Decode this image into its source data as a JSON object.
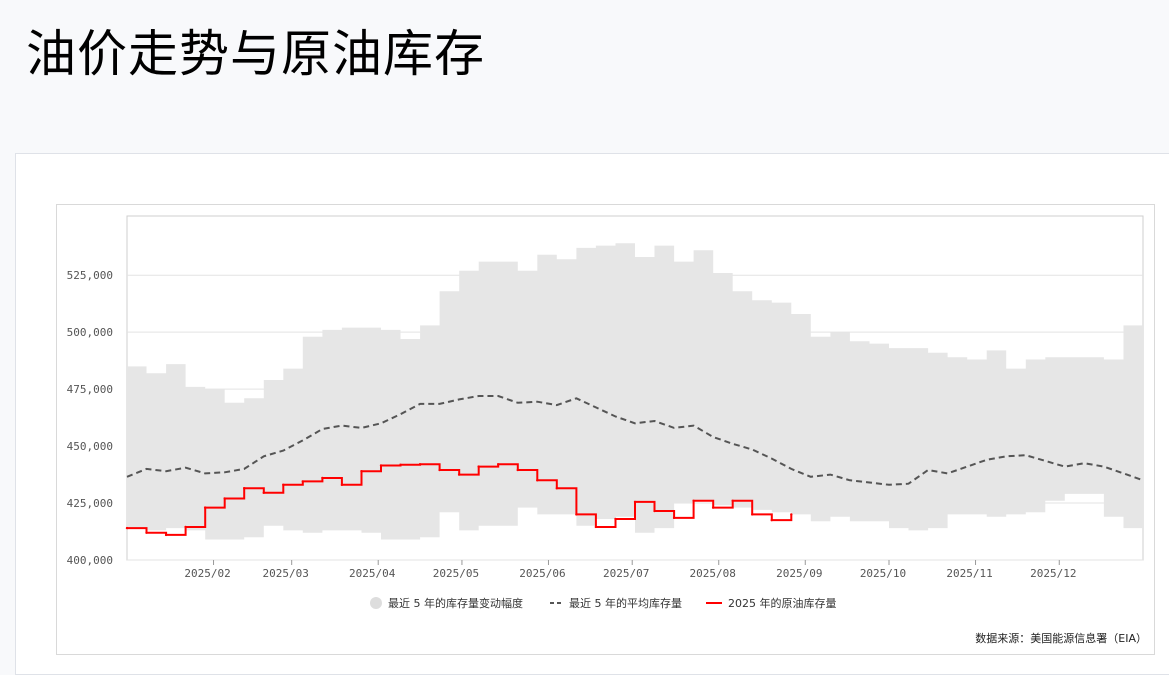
{
  "page": {
    "title": "油价走势与原油库存"
  },
  "chart_data": {
    "type": "area",
    "x_axis": {
      "months": [
        "2025/02",
        "2025/03",
        "2025/04",
        "2025/05",
        "2025/06",
        "2025/07",
        "2025/08",
        "2025/09",
        "2025/10",
        "2025/11",
        "2025/12"
      ],
      "range": [
        "2025-01-01",
        "2025-12-31"
      ]
    },
    "y_axis": {
      "ticks": [
        400000,
        425000,
        450000,
        475000,
        500000,
        525000
      ],
      "tick_labels": [
        "400,000",
        "425,000",
        "450,000",
        "475,000",
        "500,000",
        "525,000"
      ],
      "ylim": [
        400000,
        551000
      ]
    },
    "grid": "horizontal",
    "legend_position": "bottom-center",
    "series": [
      {
        "name": "最近 5 年的库存量变动幅度",
        "kind": "range-band",
        "color": "#e6e6e6",
        "x": [
          "2025-01-01",
          "2025-01-08",
          "2025-01-15",
          "2025-01-22",
          "2025-01-29",
          "2025-02-05",
          "2025-02-12",
          "2025-02-19",
          "2025-02-26",
          "2025-03-05",
          "2025-03-12",
          "2025-03-19",
          "2025-03-26",
          "2025-04-02",
          "2025-04-09",
          "2025-04-16",
          "2025-04-23",
          "2025-04-30",
          "2025-05-07",
          "2025-05-14",
          "2025-05-21",
          "2025-05-28",
          "2025-06-04",
          "2025-06-11",
          "2025-06-18",
          "2025-06-25",
          "2025-07-02",
          "2025-07-09",
          "2025-07-16",
          "2025-07-23",
          "2025-07-30",
          "2025-08-06",
          "2025-08-13",
          "2025-08-20",
          "2025-08-27",
          "2025-09-03",
          "2025-09-10",
          "2025-09-17",
          "2025-09-24",
          "2025-10-01",
          "2025-10-08",
          "2025-10-15",
          "2025-10-22",
          "2025-10-29",
          "2025-11-05",
          "2025-11-12",
          "2025-11-19",
          "2025-11-26",
          "2025-12-03",
          "2025-12-10",
          "2025-12-17",
          "2025-12-24",
          "2025-12-31"
        ],
        "high": [
          485000,
          482000,
          486000,
          476000,
          475000,
          469000,
          471000,
          479000,
          484000,
          498000,
          501000,
          502000,
          502000,
          501000,
          497000,
          503000,
          518000,
          527000,
          531000,
          531000,
          527000,
          534000,
          532000,
          537000,
          538000,
          539000,
          533000,
          538000,
          531000,
          536000,
          526000,
          518000,
          514000,
          513000,
          508000,
          498000,
          500000,
          496000,
          495000,
          493000,
          493000,
          491000,
          489000,
          488000,
          492000,
          484000,
          488000,
          489000,
          489000,
          489000,
          488000,
          503000,
          500000
        ],
        "low": [
          414000,
          413000,
          414000,
          413000,
          409000,
          409000,
          410000,
          415000,
          413000,
          412000,
          413000,
          413000,
          412000,
          409000,
          409000,
          410000,
          421000,
          413000,
          415000,
          415000,
          423000,
          420000,
          420000,
          415000,
          418000,
          419000,
          412000,
          414000,
          425000,
          426000,
          424000,
          423000,
          422000,
          421000,
          420000,
          417000,
          419000,
          417000,
          417000,
          414000,
          413000,
          414000,
          420000,
          420000,
          419000,
          420000,
          421000,
          426000,
          429000,
          429000,
          419000,
          414000,
          421000
        ]
      },
      {
        "name": "最近 5 年的平均库存量",
        "kind": "line",
        "style": "dashed",
        "color": "#555555",
        "x": [
          "2025-01-01",
          "2025-01-08",
          "2025-01-15",
          "2025-01-22",
          "2025-01-29",
          "2025-02-05",
          "2025-02-12",
          "2025-02-19",
          "2025-02-26",
          "2025-03-05",
          "2025-03-12",
          "2025-03-19",
          "2025-03-26",
          "2025-04-02",
          "2025-04-09",
          "2025-04-16",
          "2025-04-23",
          "2025-04-30",
          "2025-05-07",
          "2025-05-14",
          "2025-05-21",
          "2025-05-28",
          "2025-06-04",
          "2025-06-11",
          "2025-06-18",
          "2025-06-25",
          "2025-07-02",
          "2025-07-09",
          "2025-07-16",
          "2025-07-23",
          "2025-07-30",
          "2025-08-06",
          "2025-08-13",
          "2025-08-20",
          "2025-08-27",
          "2025-09-03",
          "2025-09-10",
          "2025-09-17",
          "2025-09-24",
          "2025-10-01",
          "2025-10-08",
          "2025-10-15",
          "2025-10-22",
          "2025-10-29",
          "2025-11-05",
          "2025-11-12",
          "2025-11-19",
          "2025-11-26",
          "2025-12-03",
          "2025-12-10",
          "2025-12-17",
          "2025-12-24",
          "2025-12-31"
        ],
        "values": [
          436500,
          440000,
          439000,
          440500,
          438000,
          438500,
          440000,
          445500,
          448000,
          452500,
          457500,
          459000,
          458000,
          460000,
          464000,
          468500,
          468500,
          470500,
          472000,
          472000,
          469000,
          469500,
          468000,
          471000,
          467000,
          463000,
          460000,
          461000,
          458000,
          459000,
          454000,
          451000,
          448500,
          444500,
          440000,
          436500,
          437500,
          435000,
          434000,
          433000,
          433500,
          439500,
          438000,
          441000,
          444000,
          445500,
          446000,
          443500,
          441000,
          442500,
          441000,
          438000,
          435000
        ]
      },
      {
        "name": "2025 年的原油库存量",
        "kind": "step-line",
        "color": "#ff0000",
        "x": [
          "2025-01-01",
          "2025-01-08",
          "2025-01-15",
          "2025-01-22",
          "2025-01-29",
          "2025-02-05",
          "2025-02-12",
          "2025-02-19",
          "2025-02-26",
          "2025-03-05",
          "2025-03-12",
          "2025-03-19",
          "2025-03-26",
          "2025-04-02",
          "2025-04-09",
          "2025-04-16",
          "2025-04-23",
          "2025-04-30",
          "2025-05-07",
          "2025-05-14",
          "2025-05-21",
          "2025-05-28",
          "2025-06-04",
          "2025-06-11",
          "2025-06-18",
          "2025-06-25",
          "2025-07-02",
          "2025-07-09",
          "2025-07-16",
          "2025-07-23",
          "2025-07-30",
          "2025-08-06",
          "2025-08-13",
          "2025-08-20",
          "2025-08-27"
        ],
        "values": [
          414000,
          412000,
          411000,
          414500,
          423000,
          427000,
          431500,
          429500,
          433000,
          434500,
          436000,
          433000,
          439000,
          441500,
          441800,
          442000,
          439500,
          437500,
          441000,
          442000,
          439500,
          435000,
          431500,
          420000,
          414500,
          418000,
          425500,
          421500,
          418500,
          426000,
          423000,
          426000,
          420000,
          417500,
          420000
        ]
      }
    ],
    "legend": [
      "最近 5 年的库存量变动幅度",
      "最近 5 年的平均库存量",
      "2025 年的原油库存量"
    ],
    "source": "数据来源：美国能源信息署（EIA）"
  }
}
